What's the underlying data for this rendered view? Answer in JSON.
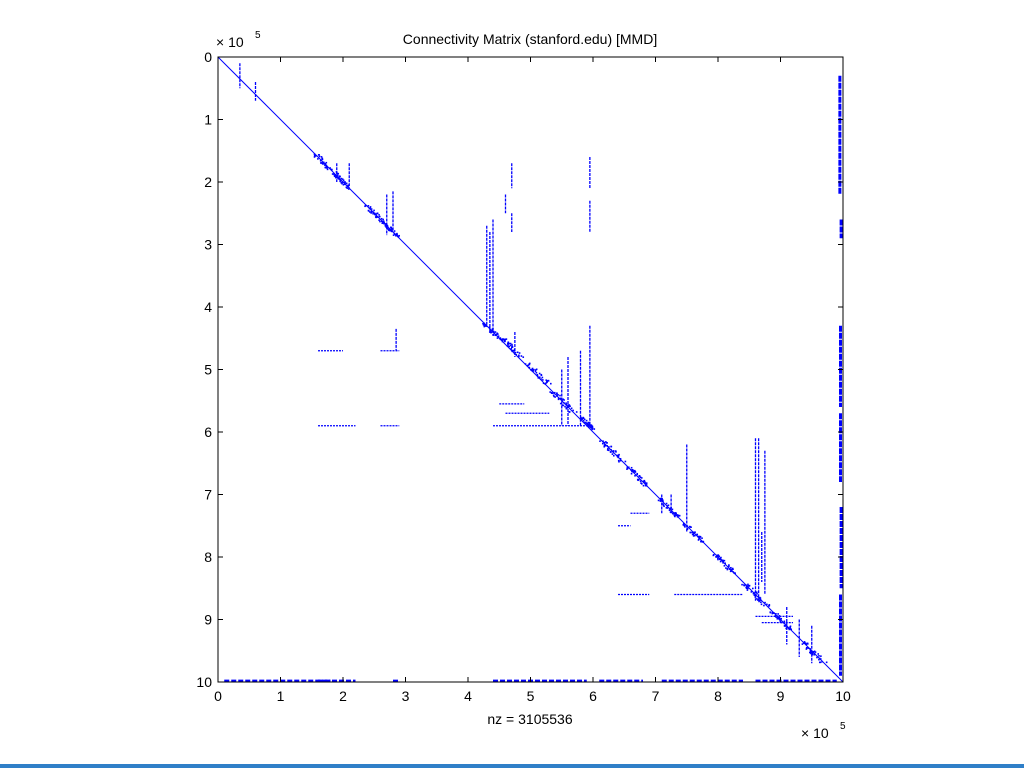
{
  "chart_data": {
    "type": "scatter",
    "title": "Connectivity Matrix (stanford.edu) [MMD]",
    "xlabel": "nz = 3105536",
    "ylabel": "",
    "x_exponent_label": {
      "base": "× 10",
      "exp": "5"
    },
    "y_exponent_label": {
      "base": "× 10",
      "exp": "5"
    },
    "xlim": [
      0,
      10
    ],
    "ylim": [
      0,
      10
    ],
    "y_inverted": true,
    "x_ticks": [
      "0",
      "1",
      "2",
      "3",
      "4",
      "5",
      "6",
      "7",
      "8",
      "9",
      "10"
    ],
    "y_ticks": [
      "0",
      "1",
      "2",
      "3",
      "4",
      "5",
      "6",
      "7",
      "8",
      "9",
      "10"
    ],
    "grid": false,
    "marker_color": "#0000ff",
    "diagonal": [
      [
        0,
        0
      ],
      [
        10,
        10
      ]
    ],
    "vertical_segments": [
      [
        0.35,
        0.1,
        0.35,
        0.5
      ],
      [
        0.6,
        0.4,
        0.6,
        0.7
      ],
      [
        4.3,
        2.7,
        4.3,
        4.3
      ],
      [
        4.35,
        2.8,
        4.35,
        4.4
      ],
      [
        4.4,
        2.6,
        4.4,
        4.35
      ],
      [
        4.7,
        1.7,
        4.7,
        2.1
      ],
      [
        4.6,
        2.2,
        4.6,
        2.5
      ],
      [
        4.7,
        2.5,
        4.7,
        2.8
      ],
      [
        5.95,
        1.6,
        5.95,
        2.1
      ],
      [
        5.95,
        2.3,
        5.95,
        2.8
      ],
      [
        5.95,
        4.3,
        5.95,
        5.9
      ],
      [
        5.8,
        4.7,
        5.8,
        5.9
      ],
      [
        5.6,
        4.8,
        5.6,
        5.9
      ],
      [
        5.5,
        5.0,
        5.5,
        5.9
      ],
      [
        2.8,
        2.15,
        2.8,
        2.8
      ],
      [
        2.7,
        2.2,
        2.7,
        2.85
      ],
      [
        1.9,
        1.7,
        1.9,
        2.0
      ],
      [
        2.1,
        1.7,
        2.1,
        2.1
      ],
      [
        2.85,
        4.35,
        2.85,
        4.7
      ],
      [
        4.75,
        4.4,
        4.75,
        4.8
      ],
      [
        7.5,
        6.2,
        7.5,
        7.6
      ],
      [
        7.25,
        7.0,
        7.25,
        7.3
      ],
      [
        7.1,
        7.0,
        7.1,
        7.3
      ],
      [
        8.6,
        6.1,
        8.6,
        8.7
      ],
      [
        8.65,
        6.1,
        8.65,
        8.7
      ],
      [
        8.75,
        6.3,
        8.75,
        8.6
      ],
      [
        8.7,
        7.6,
        8.7,
        8.4
      ],
      [
        9.1,
        8.8,
        9.1,
        9.4
      ],
      [
        9.3,
        9.0,
        9.3,
        9.6
      ],
      [
        9.5,
        9.1,
        9.5,
        9.7
      ],
      [
        9.95,
        0.3,
        9.95,
        2.2
      ],
      [
        9.97,
        2.6,
        9.97,
        2.9
      ],
      [
        9.96,
        4.3,
        9.96,
        5.6
      ],
      [
        9.96,
        5.7,
        9.96,
        6.8
      ],
      [
        9.97,
        7.2,
        9.97,
        8.5
      ],
      [
        9.96,
        8.6,
        9.96,
        9.9
      ]
    ],
    "horizontal_segments": [
      [
        1.6,
        4.7,
        2.0,
        4.7
      ],
      [
        2.6,
        4.7,
        2.9,
        4.7
      ],
      [
        1.6,
        5.9,
        2.2,
        5.9
      ],
      [
        2.6,
        5.9,
        2.9,
        5.9
      ],
      [
        4.4,
        5.9,
        5.95,
        5.9
      ],
      [
        4.5,
        5.55,
        4.9,
        5.55
      ],
      [
        4.6,
        5.7,
        5.3,
        5.7
      ],
      [
        6.4,
        7.5,
        6.6,
        7.5
      ],
      [
        6.6,
        7.3,
        6.9,
        7.3
      ],
      [
        6.4,
        8.6,
        6.9,
        8.6
      ],
      [
        7.3,
        8.6,
        8.4,
        8.6
      ],
      [
        8.6,
        8.95,
        9.2,
        8.95
      ],
      [
        8.7,
        9.05,
        9.2,
        9.05
      ],
      [
        0.1,
        9.98,
        1.8,
        9.98
      ],
      [
        1.6,
        9.98,
        2.2,
        9.98
      ],
      [
        2.8,
        9.98,
        2.9,
        9.98
      ],
      [
        4.4,
        9.98,
        5.9,
        9.98
      ],
      [
        6.1,
        9.98,
        6.8,
        9.98
      ],
      [
        7.1,
        9.98,
        8.4,
        9.98
      ],
      [
        8.6,
        9.98,
        9.9,
        9.98
      ]
    ],
    "diagonal_clusters": [
      [
        1.7,
        1.7,
        0.35
      ],
      [
        2.0,
        2.0,
        0.25
      ],
      [
        2.5,
        2.5,
        0.3
      ],
      [
        2.75,
        2.75,
        0.25
      ],
      [
        4.4,
        4.4,
        0.3
      ],
      [
        4.7,
        4.65,
        0.3
      ],
      [
        5.1,
        5.05,
        0.35
      ],
      [
        5.5,
        5.5,
        0.35
      ],
      [
        5.9,
        5.85,
        0.2
      ],
      [
        6.3,
        6.3,
        0.35
      ],
      [
        6.7,
        6.7,
        0.3
      ],
      [
        7.2,
        7.2,
        0.3
      ],
      [
        7.6,
        7.6,
        0.3
      ],
      [
        8.1,
        8.1,
        0.3
      ],
      [
        8.6,
        8.6,
        0.35
      ],
      [
        9.0,
        9.0,
        0.3
      ],
      [
        9.5,
        9.5,
        0.35
      ]
    ]
  }
}
